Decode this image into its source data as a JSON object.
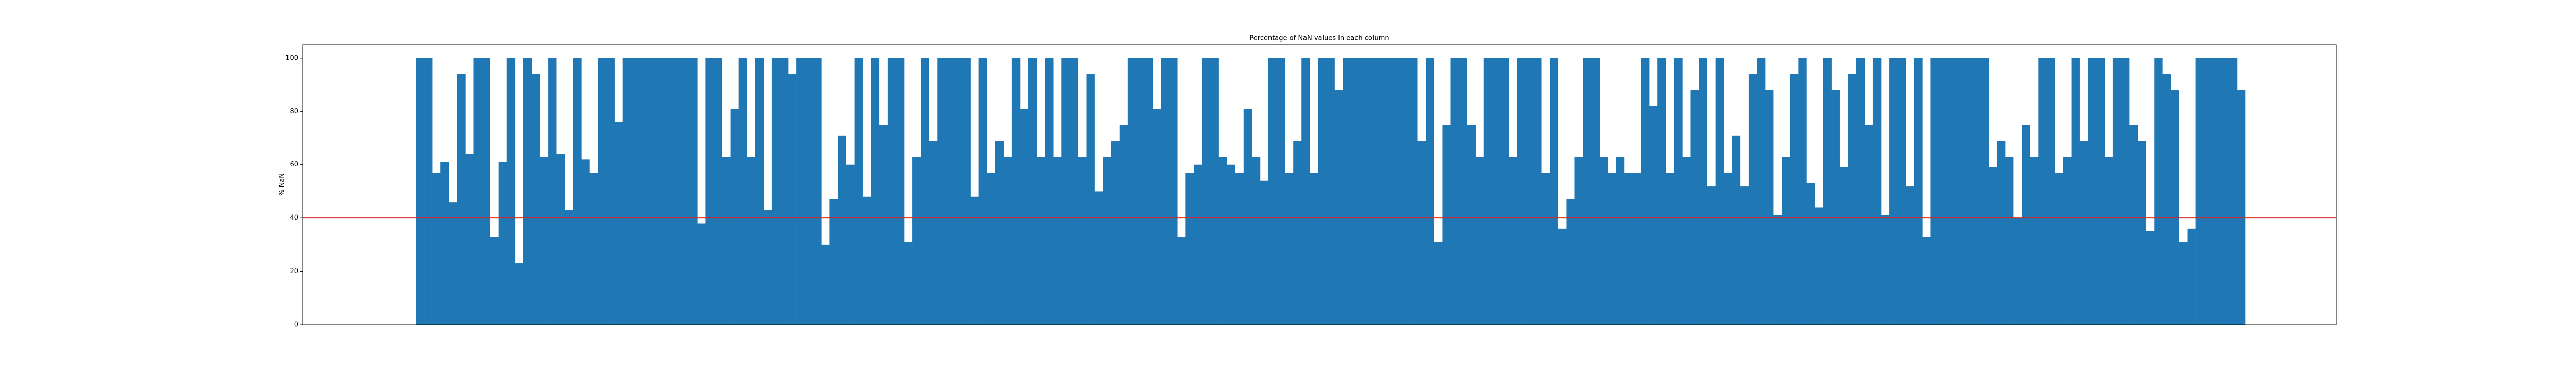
{
  "chart_data": {
    "type": "bar",
    "title": "Percentage of NaN values in each column",
    "ylabel": "% NaN",
    "color": "#1f77b4",
    "hline": 40,
    "hline_color": "#d62728",
    "ylim": [
      0,
      105
    ],
    "yticks": [
      0,
      20,
      40,
      60,
      80,
      100
    ],
    "values": [
      100,
      100,
      57,
      61,
      46,
      94,
      64,
      100,
      100,
      33,
      61,
      100,
      23,
      100,
      94,
      63,
      100,
      64,
      43,
      100,
      62,
      57,
      100,
      100,
      76,
      100,
      100,
      100,
      100,
      100,
      100,
      100,
      100,
      100,
      38,
      100,
      100,
      63,
      81,
      100,
      63,
      100,
      43,
      100,
      100,
      94,
      100,
      100,
      100,
      30,
      47,
      71,
      60,
      100,
      48,
      100,
      75,
      100,
      100,
      31,
      63,
      100,
      69,
      100,
      100,
      100,
      100,
      48,
      100,
      57,
      69,
      63,
      100,
      81,
      100,
      63,
      100,
      63,
      100,
      100,
      63,
      94,
      50,
      63,
      69,
      75,
      100,
      100,
      100,
      81,
      100,
      100,
      33,
      57,
      60,
      100,
      100,
      63,
      60,
      57,
      81,
      63,
      54,
      100,
      100,
      57,
      69,
      100,
      57,
      100,
      100,
      88,
      100,
      100,
      100,
      100,
      100,
      100,
      100,
      100,
      100,
      69,
      100,
      31,
      75,
      100,
      100,
      75,
      63,
      100,
      100,
      100,
      63,
      100,
      100,
      100,
      57,
      100,
      36,
      47,
      63,
      100,
      100,
      63,
      57,
      63,
      57,
      57,
      100,
      82,
      100,
      57,
      100,
      63,
      88,
      100,
      52,
      100,
      57,
      71,
      52,
      94,
      100,
      88,
      41,
      63,
      94,
      100,
      53,
      44,
      100,
      88,
      59,
      94,
      100,
      75,
      100,
      41,
      100,
      100,
      52,
      100,
      33,
      100,
      100,
      100,
      100,
      100,
      100,
      100,
      59,
      69,
      63,
      40,
      75,
      63,
      100,
      100,
      57,
      63,
      100,
      69,
      100,
      100,
      63,
      100,
      100,
      75,
      69,
      35,
      100,
      94,
      88,
      31,
      36,
      100,
      100,
      100,
      100,
      100,
      88
    ]
  }
}
